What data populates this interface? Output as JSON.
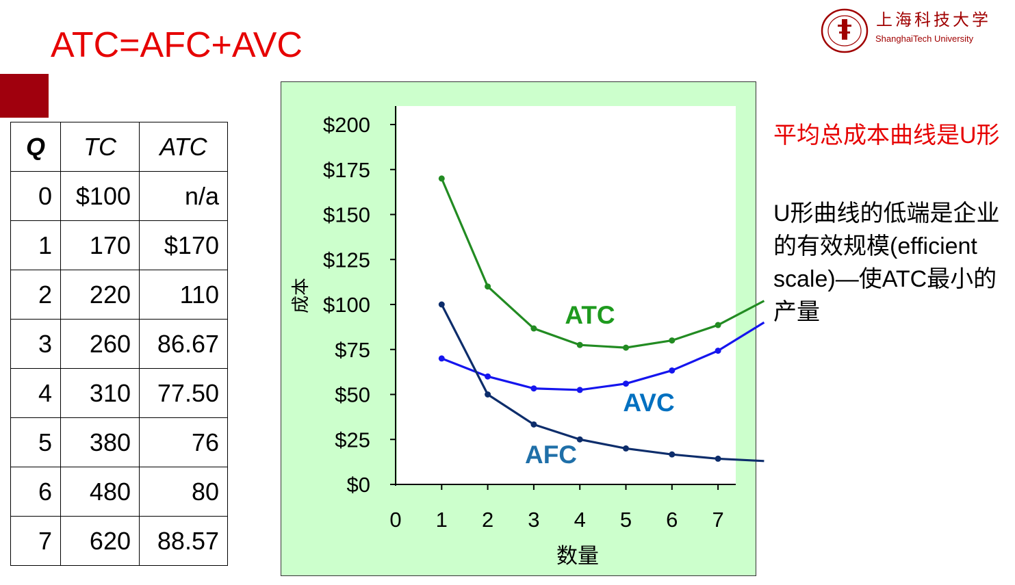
{
  "slide": {
    "title": "ATC=AFC+AVC",
    "accent_color": "#a0000d",
    "title_color": "#e60000"
  },
  "logo": {
    "icon": "university-seal-icon",
    "name_cn": "上海科技大学",
    "name_en": "ShanghaiTech University"
  },
  "table": {
    "headers": [
      "Q",
      "TC",
      "ATC"
    ],
    "rows": [
      [
        "0",
        "$100",
        "n/a"
      ],
      [
        "1",
        "170",
        "$170"
      ],
      [
        "2",
        "220",
        "110"
      ],
      [
        "3",
        "260",
        "86.67"
      ],
      [
        "4",
        "310",
        "77.50"
      ],
      [
        "5",
        "380",
        "76"
      ],
      [
        "6",
        "480",
        "80"
      ],
      [
        "7",
        "620",
        "88.57"
      ]
    ]
  },
  "notes": {
    "red": "平均总成本曲线是U形",
    "black": "U形曲线的低端是企业的有效规模(efficient scale)—使ATC最小的产量"
  },
  "chart_data": {
    "type": "line",
    "xlabel": "数量",
    "ylabel": "成本",
    "xlim": [
      0,
      7.4
    ],
    "ylim": [
      0,
      200
    ],
    "x_ticks": [
      "0",
      "1",
      "2",
      "3",
      "4",
      "5",
      "6",
      "7"
    ],
    "y_ticks": [
      "$0",
      "$25",
      "$50",
      "$75",
      "$100",
      "$125",
      "$150",
      "$175",
      "$200"
    ],
    "background": "#ccffcc",
    "plot_background": "#ffffff",
    "series": [
      {
        "name": "ATC",
        "color": "#228b22",
        "label_color": "#1e9a1e",
        "x": [
          1,
          2,
          3,
          4,
          5,
          6,
          7
        ],
        "y": [
          170,
          110,
          86.67,
          77.5,
          76,
          80,
          88.57
        ],
        "extend_to": [
          8.0,
          102
        ]
      },
      {
        "name": "AVC",
        "color": "#1515ee",
        "label_color": "#0070c0",
        "x": [
          1,
          2,
          3,
          4,
          5,
          6,
          7
        ],
        "y": [
          70,
          60,
          53.33,
          52.5,
          56,
          63.33,
          74.29
        ],
        "extend_to": [
          8.0,
          90
        ]
      },
      {
        "name": "AFC",
        "color": "#0d2d6b",
        "label_color": "#1f6fa8",
        "x": [
          1,
          2,
          3,
          4,
          5,
          6,
          7
        ],
        "y": [
          100,
          50,
          33.33,
          25,
          20,
          16.67,
          14.29
        ],
        "extend_to": [
          8.0,
          13
        ]
      }
    ]
  }
}
